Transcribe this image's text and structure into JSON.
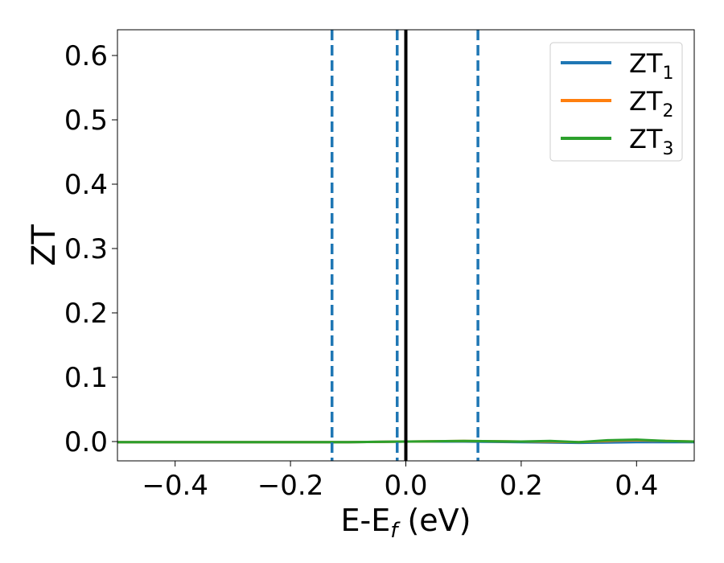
{
  "chart_data": {
    "type": "line",
    "xlabel_main": "E-E",
    "xlabel_sub": "f",
    "xlabel_unit": " (eV)",
    "ylabel": "ZT",
    "xlim": [
      -0.5,
      0.5
    ],
    "ylim": [
      -0.03,
      0.64
    ],
    "xticks": [
      -0.4,
      -0.2,
      0.0,
      0.2,
      0.4
    ],
    "xtick_labels": [
      "−0.4",
      "−0.2",
      "0.0",
      "0.2",
      "0.4"
    ],
    "yticks": [
      0.0,
      0.1,
      0.2,
      0.3,
      0.4,
      0.5,
      0.6
    ],
    "ytick_labels": [
      "0.0",
      "0.1",
      "0.2",
      "0.3",
      "0.4",
      "0.5",
      "0.6"
    ],
    "grid": false,
    "legend_position": "top-right",
    "vlines": [
      {
        "x": -0.128,
        "style": "dashed",
        "color": "#1f77b4"
      },
      {
        "x": -0.015,
        "style": "dashed",
        "color": "#1f77b4"
      },
      {
        "x": 0.0,
        "style": "solid",
        "color": "#000000"
      },
      {
        "x": 0.125,
        "style": "dashed",
        "color": "#1f77b4"
      }
    ],
    "series": [
      {
        "name_main": "ZT",
        "name_sub": "1",
        "color": "#1f77b4",
        "x": [
          -0.5,
          -0.4,
          -0.3,
          -0.2,
          -0.1,
          0.0,
          0.1,
          0.2,
          0.3,
          0.4,
          0.5
        ],
        "y": [
          -0.001,
          -0.001,
          -0.001,
          -0.001,
          -0.001,
          0.0,
          0.0,
          -0.001,
          -0.002,
          -0.001,
          -0.001
        ]
      },
      {
        "name_main": "ZT",
        "name_sub": "2",
        "color": "#ff7f0e",
        "x": [
          -0.5,
          -0.4,
          -0.3,
          -0.2,
          -0.1,
          0.0,
          0.1,
          0.2,
          0.25,
          0.3,
          0.35,
          0.4,
          0.45,
          0.5
        ],
        "y": [
          -0.001,
          -0.001,
          -0.001,
          -0.001,
          -0.001,
          0.0,
          0.001,
          0.0,
          0.0,
          -0.001,
          0.001,
          0.002,
          0.001,
          0.0
        ]
      },
      {
        "name_main": "ZT",
        "name_sub": "3",
        "color": "#2ca02c",
        "x": [
          -0.5,
          -0.4,
          -0.3,
          -0.2,
          -0.1,
          0.0,
          0.1,
          0.2,
          0.25,
          0.3,
          0.35,
          0.4,
          0.45,
          0.5
        ],
        "y": [
          -0.001,
          -0.001,
          -0.001,
          -0.001,
          -0.001,
          0.0,
          0.001,
          0.0,
          0.001,
          -0.001,
          0.002,
          0.003,
          0.001,
          0.0
        ]
      }
    ]
  }
}
